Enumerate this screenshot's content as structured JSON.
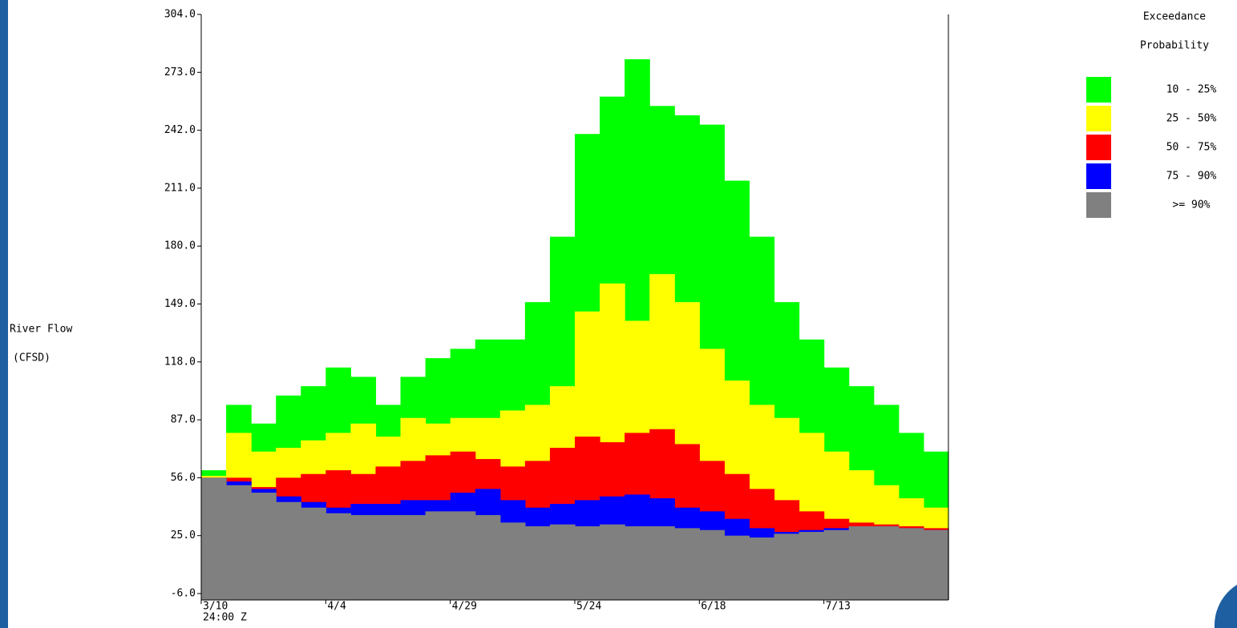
{
  "chart_data": {
    "type": "exceedance",
    "y_label_lines": [
      "River Flow",
      "(CFSD)"
    ],
    "legend_title_lines": [
      "Exceedance",
      "Probability"
    ],
    "categories": [
      "3/10",
      null,
      null,
      null,
      null,
      "4/4",
      null,
      null,
      null,
      null,
      "4/29",
      null,
      null,
      null,
      null,
      "5/24",
      null,
      null,
      null,
      null,
      "6/18",
      null,
      null,
      null,
      null,
      "7/13",
      null,
      null,
      null,
      null
    ],
    "x_note": "24:00 Z",
    "ylim": [
      -6,
      304
    ],
    "yticks": [
      {
        "value": -6,
        "label": "-6.0"
      },
      {
        "value": 25,
        "label": "25.0"
      },
      {
        "value": 56,
        "label": "56.0"
      },
      {
        "value": 87,
        "label": "87.0"
      },
      {
        "value": 118,
        "label": "118.0"
      },
      {
        "value": 149,
        "label": "149.0"
      },
      {
        "value": 180,
        "label": "180.0"
      },
      {
        "value": 211,
        "label": "211.0"
      },
      {
        "value": 242,
        "label": "242.0"
      },
      {
        "value": 273,
        "label": "273.0"
      },
      {
        "value": 304,
        "label": "304.0"
      }
    ],
    "series": [
      {
        "name": "10 - 25%",
        "color": "#00ff00",
        "values": [
          60,
          95,
          85,
          100,
          105,
          115,
          110,
          95,
          110,
          120,
          125,
          130,
          130,
          150,
          185,
          240,
          260,
          280,
          255,
          250,
          245,
          215,
          185,
          150,
          130,
          115,
          105,
          95,
          80,
          70
        ]
      },
      {
        "name": "25 - 50%",
        "color": "#ffff00",
        "values": [
          57,
          80,
          70,
          72,
          76,
          80,
          85,
          78,
          88,
          85,
          88,
          88,
          92,
          95,
          105,
          145,
          160,
          140,
          165,
          150,
          125,
          108,
          95,
          88,
          80,
          70,
          60,
          52,
          45,
          40
        ]
      },
      {
        "name": "50 - 75%",
        "color": "#ff0000",
        "values": [
          56,
          56,
          51,
          56,
          58,
          60,
          58,
          62,
          65,
          68,
          70,
          66,
          62,
          65,
          72,
          78,
          75,
          80,
          82,
          74,
          65,
          58,
          50,
          44,
          38,
          34,
          32,
          31,
          30,
          29
        ]
      },
      {
        "name": "75 - 90%",
        "color": "#0000ff",
        "values": [
          56,
          54,
          50,
          46,
          43,
          40,
          42,
          42,
          44,
          44,
          48,
          50,
          44,
          40,
          42,
          44,
          46,
          47,
          45,
          40,
          38,
          34,
          29,
          27,
          28,
          29,
          30,
          30,
          29,
          28
        ]
      },
      {
        "name": ">= 90%",
        "color": "#808080",
        "values": [
          56,
          52,
          48,
          43,
          40,
          37,
          36,
          36,
          36,
          38,
          38,
          36,
          32,
          30,
          31,
          30,
          31,
          30,
          30,
          29,
          28,
          25,
          24,
          26,
          27,
          28,
          30,
          30,
          29,
          28
        ]
      }
    ]
  }
}
